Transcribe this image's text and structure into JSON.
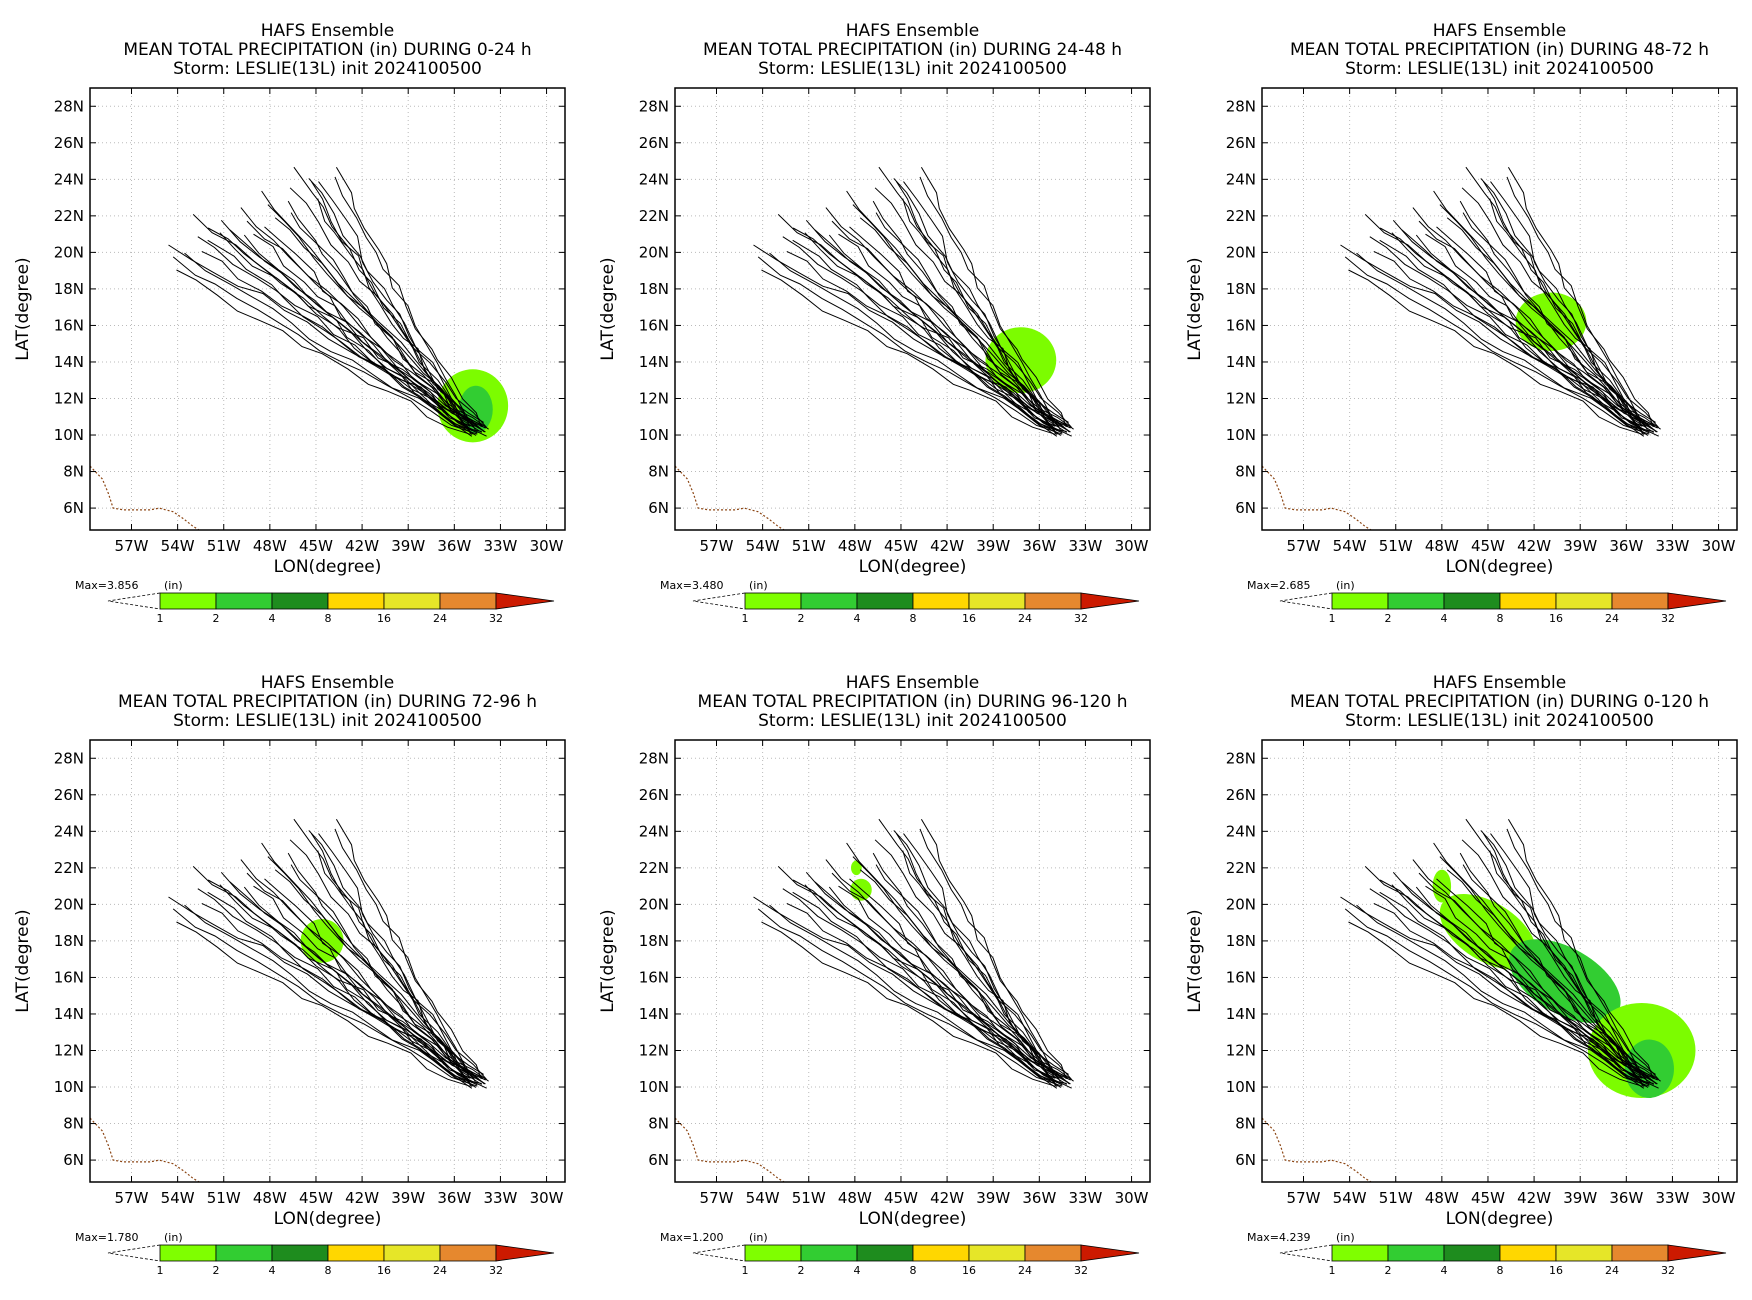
{
  "figure": {
    "panels": [
      {
        "title": "HAFS Ensemble",
        "subtitle": "MEAN TOTAL PRECIPITATION (in) DURING  0-24 h",
        "storm": "Storm: LESLIE(13L) init 2024100500",
        "max_label": "Max=3.856",
        "units_label": "(in)"
      },
      {
        "title": "HAFS Ensemble",
        "subtitle": "MEAN TOTAL PRECIPITATION (in) DURING 24-48 h",
        "storm": "Storm: LESLIE(13L) init 2024100500",
        "max_label": "Max=3.480",
        "units_label": "(in)"
      },
      {
        "title": "HAFS Ensemble",
        "subtitle": "MEAN TOTAL PRECIPITATION (in) DURING 48-72 h",
        "storm": "Storm: LESLIE(13L) init 2024100500",
        "max_label": "Max=2.685",
        "units_label": "(in)"
      },
      {
        "title": "HAFS Ensemble",
        "subtitle": "MEAN TOTAL PRECIPITATION (in) DURING 72-96 h",
        "storm": "Storm: LESLIE(13L) init 2024100500",
        "max_label": "Max=1.780",
        "units_label": "(in)"
      },
      {
        "title": "HAFS Ensemble",
        "subtitle": "MEAN TOTAL PRECIPITATION (in) DURING 96-120 h",
        "storm": "Storm: LESLIE(13L) init 2024100500",
        "max_label": "Max=1.200",
        "units_label": "(in)"
      },
      {
        "title": "HAFS Ensemble",
        "subtitle": "MEAN TOTAL PRECIPITATION (in) DURING 0-120 h",
        "storm": "Storm: LESLIE(13L) init 2024100500",
        "max_label": "Max=4.239",
        "units_label": "(in)"
      }
    ]
  },
  "chart_data": {
    "type": "heatmap",
    "xlabel": "LON(degree)",
    "ylabel": "LAT(degree)",
    "xlim": [
      -59.7,
      -28.8
    ],
    "ylim": [
      4.8,
      29.0
    ],
    "x_ticks": [
      -57,
      -54,
      -51,
      -48,
      -45,
      -42,
      -39,
      -36,
      -33,
      -30
    ],
    "x_tick_labels": [
      "57W",
      "54W",
      "51W",
      "48W",
      "45W",
      "42W",
      "39W",
      "36W",
      "33W",
      "30W"
    ],
    "y_ticks": [
      6,
      8,
      10,
      12,
      14,
      16,
      18,
      20,
      22,
      24,
      26,
      28
    ],
    "y_tick_labels": [
      "6N",
      "8N",
      "10N",
      "12N",
      "14N",
      "16N",
      "18N",
      "20N",
      "22N",
      "24N",
      "26N",
      "28N"
    ],
    "grid": true,
    "colorbar": {
      "levels": [
        "1",
        "2",
        "4",
        "8",
        "16",
        "24",
        "32"
      ],
      "colors": [
        "#7fff00",
        "#32cd32",
        "#1e9b1e",
        "#228b22",
        "#ffd700",
        "#e6dc32",
        "#e68a32",
        "#cc1a00"
      ],
      "extend": "max"
    },
    "track_colors": {
      "tracks": "#000000",
      "coast": "#8b4513",
      "light_green": "#7cfc00",
      "green": "#32cd32"
    },
    "tracks_end": [
      [
        -47.6,
        22.0
      ],
      [
        -46.2,
        24.5
      ],
      [
        -45.4,
        24.2
      ],
      [
        -46.5,
        23.5
      ],
      [
        -45.5,
        23.8
      ],
      [
        -48.2,
        21.5
      ],
      [
        -49.4,
        21.8
      ],
      [
        -50.0,
        22.4
      ],
      [
        -51.0,
        21.6
      ],
      [
        -53.0,
        22.0
      ],
      [
        -54.4,
        20.5
      ],
      [
        -54.5,
        19.6
      ],
      [
        -54.0,
        19.0
      ],
      [
        -52.5,
        20.2
      ],
      [
        -51.5,
        21.0
      ],
      [
        -49.0,
        21.0
      ],
      [
        -47.0,
        22.7
      ],
      [
        -44.0,
        24.0
      ],
      [
        -43.5,
        24.5
      ],
      [
        -48.5,
        23.2
      ],
      [
        -52.0,
        21.5
      ],
      [
        -50.5,
        21.2
      ],
      [
        -46.8,
        22.3
      ],
      [
        -44.6,
        23.8
      ],
      [
        -53.5,
        19.8
      ],
      [
        -49.8,
        20.8
      ],
      [
        -48.0,
        22.6
      ],
      [
        -51.8,
        20.6
      ],
      [
        -45.0,
        22.8
      ],
      [
        -52.8,
        21.0
      ]
    ],
    "track_origin": [
      -34.5,
      10.3
    ],
    "precip_blobs": [
      [
        {
          "lon": -34.8,
          "lat": 11.6,
          "rx": 2.3,
          "ry": 2.0,
          "level": 1
        },
        {
          "lon": -34.6,
          "lat": 11.4,
          "rx": 1.1,
          "ry": 1.3,
          "level": 2
        }
      ],
      [
        {
          "lon": -37.2,
          "lat": 14.1,
          "rx": 2.3,
          "ry": 1.8,
          "level": 1
        }
      ],
      [
        {
          "lon": -40.9,
          "lat": 16.2,
          "rx": 2.3,
          "ry": 1.6,
          "level": 1
        }
      ],
      [
        {
          "lon": -44.6,
          "lat": 18.0,
          "rx": 1.4,
          "ry": 1.2,
          "level": 1
        }
      ],
      [
        {
          "lon": -47.6,
          "lat": 20.8,
          "rx": 0.7,
          "ry": 0.6,
          "level": 1
        },
        {
          "lon": -47.9,
          "lat": 22.0,
          "rx": 0.35,
          "ry": 0.4,
          "level": 1
        }
      ],
      [
        {
          "lon": -45.0,
          "lat": 18.5,
          "rx": 3.5,
          "ry": 1.6,
          "level": 1,
          "rot": 32
        },
        {
          "lon": -40.0,
          "lat": 15.8,
          "rx": 4.0,
          "ry": 1.8,
          "level": 2,
          "rot": 30
        },
        {
          "lon": -35.0,
          "lat": 12.0,
          "rx": 3.5,
          "ry": 2.6,
          "level": 1
        },
        {
          "lon": -34.5,
          "lat": 11.0,
          "rx": 1.6,
          "ry": 1.6,
          "level": 2
        },
        {
          "lon": -48.0,
          "lat": 21.0,
          "rx": 0.6,
          "ry": 0.9,
          "level": 1
        }
      ]
    ]
  }
}
